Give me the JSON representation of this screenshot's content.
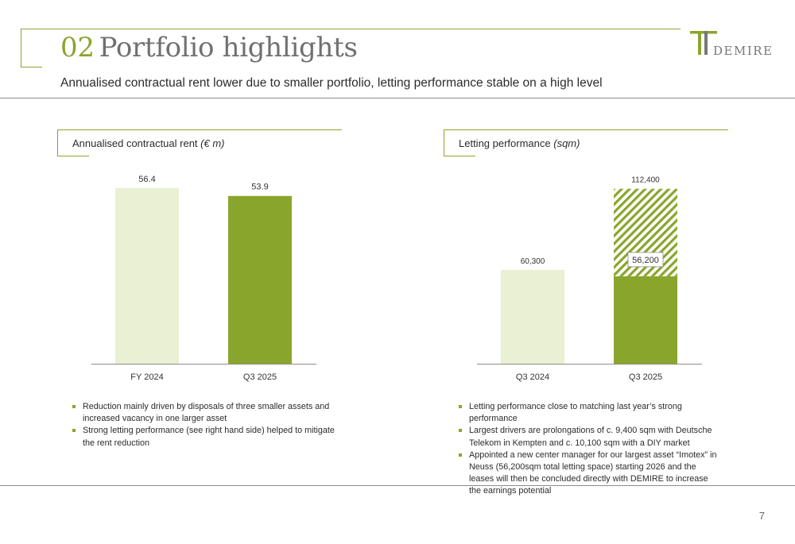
{
  "header": {
    "section_number": "02",
    "title": "Portfolio highlights",
    "subtitle": "Annualised contractual rent lower due to smaller portfolio, letting performance stable on a high level",
    "logo_text": "DEMIRE"
  },
  "left_panel": {
    "title": "Annualised contractual rent",
    "unit": "(€ m)",
    "bullets": [
      "Reduction mainly driven by disposals of three smaller assets and increased vacancy in one larger asset",
      "Strong letting performance (see right hand side) helped to mitigate the rent reduction"
    ]
  },
  "right_panel": {
    "title": "Letting performance",
    "unit": "(sqm)",
    "bullets": [
      "Letting performance close to matching last year’s strong performance",
      "Largest drivers are prolongations of c. 9,400 sqm with Deutsche Telekom in Kempten and c. 10,100 sqm with a DIY market",
      "Appointed a new center manager for our largest asset “Imotex” in Neuss (56,200sqm total letting space) starting 2026 and the leases will then be concluded directly with DEMIRE to increase the earnings potential"
    ]
  },
  "chart_data": [
    {
      "type": "bar",
      "title": "Annualised contractual rent (€ m)",
      "categories": [
        "FY 2024",
        "Q3 2025"
      ],
      "values": [
        56.4,
        53.9
      ],
      "value_labels": [
        "56.4",
        "53.9"
      ],
      "ylim": [
        0,
        62
      ],
      "colors": [
        "#e9f0d3",
        "#8aa52c"
      ]
    },
    {
      "type": "bar",
      "stacked": true,
      "title": "Letting performance (sqm)",
      "categories": [
        "Q3 2024",
        "Q3 2025"
      ],
      "series": [
        {
          "name": "Letting",
          "values": [
            60300,
            56200
          ]
        },
        {
          "name": "Imotex (hatched)",
          "values": [
            0,
            56200
          ]
        }
      ],
      "totals": [
        60300,
        112400
      ],
      "total_labels": [
        "60,300",
        "112,400"
      ],
      "segment_label": "56,200",
      "ylim": [
        0,
        124000
      ],
      "colors": [
        "#e9f0d3",
        "#8aa52c"
      ]
    }
  ],
  "footer": {
    "page_number": "7"
  },
  "colors": {
    "accent": "#8aa52c",
    "light_bar": "#e9f0d3",
    "rule": "#8c8c8c"
  }
}
